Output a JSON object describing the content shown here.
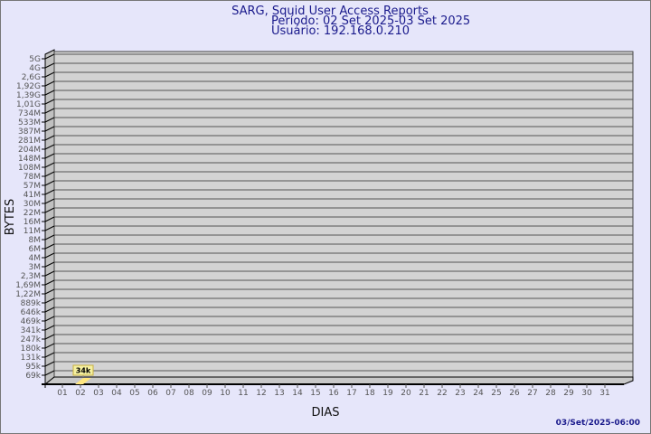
{
  "chart_data": {
    "type": "bar",
    "title": "SARG, Squid User Access Reports",
    "subtitle_period": "Período: 02 Set 2025-03 Set 2025",
    "subtitle_user": "Usuário: 192.168.0.210",
    "xlabel": "DIAS",
    "ylabel": "BYTES",
    "timestamp": "03/Set/2025-06:00",
    "y_scale": "log",
    "grid": true,
    "y_ticks": [
      "5G",
      "4G",
      "2,6G",
      "1,92G",
      "1,39G",
      "1,01G",
      "734M",
      "533M",
      "387M",
      "281M",
      "204M",
      "148M",
      "108M",
      "78M",
      "57M",
      "41M",
      "30M",
      "22M",
      "16M",
      "11M",
      "8M",
      "6M",
      "4M",
      "3M",
      "2,3M",
      "1,69M",
      "1,22M",
      "889k",
      "646k",
      "469k",
      "341k",
      "247k",
      "180k",
      "131k",
      "95k",
      "69k"
    ],
    "categories": [
      "01",
      "02",
      "03",
      "04",
      "05",
      "06",
      "07",
      "08",
      "09",
      "10",
      "11",
      "12",
      "13",
      "14",
      "15",
      "16",
      "17",
      "18",
      "19",
      "20",
      "21",
      "22",
      "23",
      "24",
      "25",
      "26",
      "27",
      "28",
      "29",
      "30",
      "31"
    ],
    "bars": [
      {
        "category": "02",
        "value": 34000,
        "label": "34k"
      }
    ],
    "colors": {
      "background": "#e6e6fa",
      "wall": "#d3d3d3",
      "bar": "#ffe680",
      "label_box": "#f5f0a0",
      "title": "#1a1a8c"
    }
  }
}
